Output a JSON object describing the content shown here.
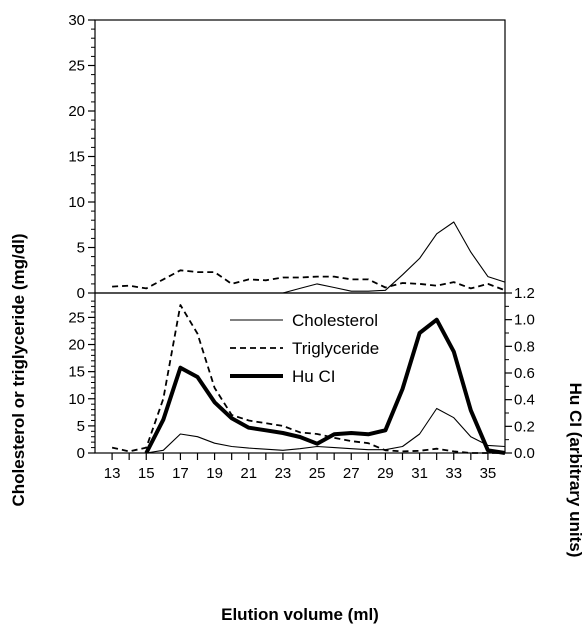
{
  "chart_data": [
    {
      "panel": "top",
      "type": "line",
      "ylim": [
        0,
        30
      ],
      "yticks": [
        0,
        5,
        10,
        15,
        20,
        25,
        30
      ],
      "xlim": [
        12,
        36
      ],
      "series": [
        {
          "key": "cholesterol",
          "style": "thin-solid",
          "x": [
            13,
            14,
            15,
            16,
            17,
            18,
            19,
            20,
            21,
            22,
            23,
            24,
            25,
            26,
            27,
            28,
            29,
            30,
            31,
            32,
            33,
            34,
            35,
            36
          ],
          "y": [
            0,
            0,
            0,
            0,
            0,
            0,
            0,
            0,
            0,
            0,
            0,
            0.5,
            1.0,
            0.6,
            0.2,
            0.2,
            0.3,
            2.0,
            3.8,
            6.5,
            7.8,
            4.5,
            1.8,
            1.2
          ]
        },
        {
          "key": "triglyceride",
          "style": "dashed",
          "x": [
            13,
            14,
            15,
            16,
            17,
            18,
            19,
            20,
            21,
            22,
            23,
            24,
            25,
            26,
            27,
            28,
            29,
            30,
            31,
            32,
            33,
            34,
            35,
            36
          ],
          "y": [
            0.7,
            0.8,
            0.5,
            1.5,
            2.5,
            2.3,
            2.3,
            1.0,
            1.5,
            1.4,
            1.7,
            1.7,
            1.8,
            1.8,
            1.5,
            1.5,
            0.6,
            1.1,
            1.0,
            0.8,
            1.2,
            0.5,
            1.0,
            0.3
          ]
        }
      ]
    },
    {
      "panel": "bottom",
      "type": "line",
      "xlabel": "Elution volume (ml)",
      "xticks": [
        13,
        14,
        15,
        16,
        17,
        18,
        19,
        20,
        21,
        22,
        23,
        24,
        25,
        26,
        27,
        28,
        29,
        30,
        31,
        32,
        33,
        34,
        35
      ],
      "xtick_labels": [
        "13",
        "15",
        "17",
        "19",
        "21",
        "23",
        "25",
        "27",
        "29",
        "31",
        "33",
        "35"
      ],
      "xtick_label_values": [
        13,
        15,
        17,
        19,
        21,
        23,
        25,
        27,
        29,
        31,
        33,
        35
      ],
      "xlim": [
        12,
        36
      ],
      "ylim_left": [
        0,
        30
      ],
      "yticks_left": [
        0,
        5,
        10,
        15,
        20,
        25
      ],
      "ylim_right": [
        0,
        1.2
      ],
      "yticks_right": [
        "0.0",
        "0.2",
        "0.4",
        "0.6",
        "0.8",
        "1.0",
        "1.2"
      ],
      "series": [
        {
          "key": "cholesterol",
          "name": "Cholesterol",
          "style": "thin-solid",
          "axis": "left",
          "x": [
            13,
            14,
            15,
            16,
            17,
            18,
            19,
            20,
            21,
            22,
            23,
            24,
            25,
            26,
            27,
            28,
            29,
            30,
            31,
            32,
            33,
            34,
            35,
            36
          ],
          "y": [
            0,
            0,
            0,
            0.5,
            3.5,
            3.0,
            1.8,
            1.2,
            0.9,
            0.7,
            0.5,
            0.8,
            1.2,
            1.0,
            0.8,
            0.6,
            0.6,
            1.2,
            3.5,
            8.2,
            6.5,
            3.0,
            1.4,
            1.2
          ]
        },
        {
          "key": "triglyceride",
          "name": "Triglyceride",
          "style": "dashed",
          "axis": "left",
          "x": [
            13,
            14,
            15,
            16,
            17,
            18,
            19,
            20,
            21,
            22,
            23,
            24,
            25,
            26,
            27,
            28,
            29,
            30,
            31,
            32,
            33,
            34,
            35,
            36
          ],
          "y": [
            1.0,
            0.3,
            1.0,
            10.0,
            28.5,
            22.0,
            12.0,
            7.0,
            6.0,
            5.5,
            5.0,
            3.8,
            3.5,
            2.8,
            2.2,
            1.8,
            0.5,
            0.3,
            0.4,
            0.8,
            0.3,
            0.0,
            0.0,
            0.0
          ]
        },
        {
          "key": "hu_ci",
          "name": "Hu CI",
          "style": "thick-solid",
          "axis": "right",
          "x": [
            15,
            16,
            17,
            18,
            19,
            20,
            21,
            22,
            23,
            24,
            25,
            26,
            27,
            28,
            29,
            30,
            31,
            32,
            33,
            34,
            35,
            36
          ],
          "y": [
            0.0,
            0.25,
            0.64,
            0.57,
            0.38,
            0.26,
            0.19,
            0.17,
            0.15,
            0.12,
            0.07,
            0.14,
            0.15,
            0.14,
            0.17,
            0.48,
            0.9,
            1.0,
            0.76,
            0.32,
            0.02,
            0.0
          ]
        }
      ],
      "legend": {
        "placement": "top-center",
        "entries": [
          {
            "key": "cholesterol",
            "label": "Cholesterol"
          },
          {
            "key": "triglyceride",
            "label": "Triglyceride"
          },
          {
            "key": "hu_ci",
            "label": "Hu CI"
          }
        ]
      }
    }
  ],
  "shared": {
    "ylabel_left": "Cholesterol or triglyceride (mg/dl)",
    "ylabel_right": "Hu CI (arbitrary units)"
  },
  "colors": {
    "line": "#000000",
    "background": "#ffffff"
  }
}
